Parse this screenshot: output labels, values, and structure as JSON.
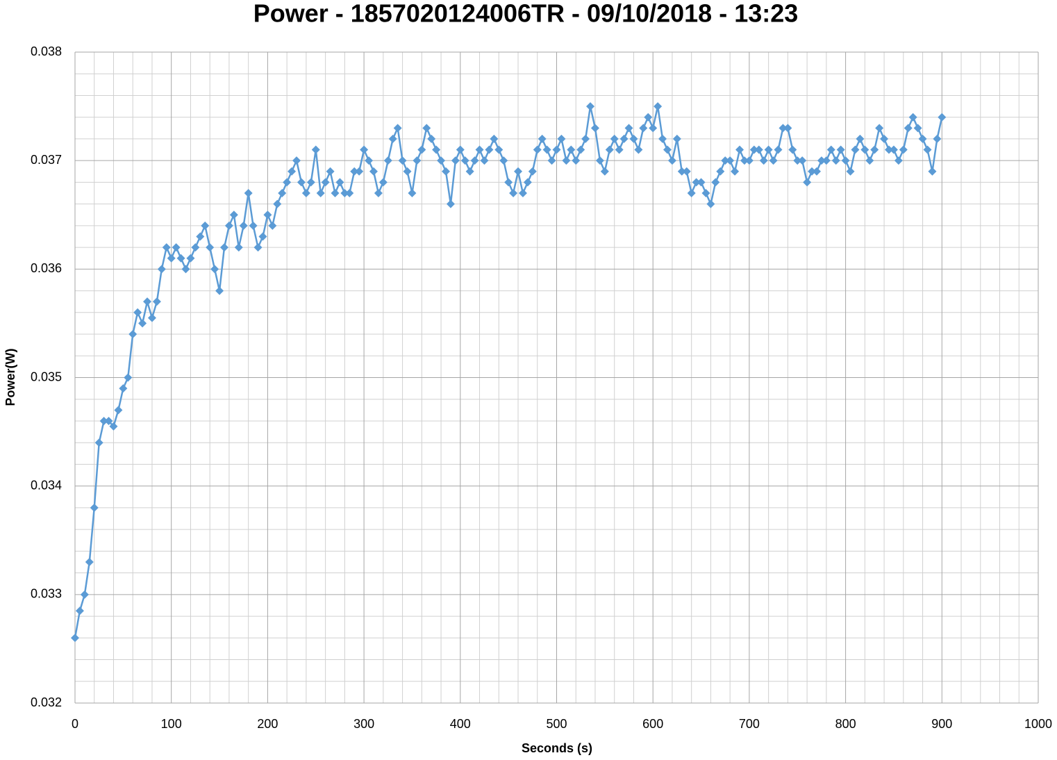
{
  "chart_data": {
    "type": "line",
    "title": "Power - 1857020124006TR - 09/10/2018 - 13:23",
    "x_label": "Seconds (s)",
    "y_label": "Power(W)",
    "x": [
      0,
      5,
      10,
      15,
      20,
      25,
      30,
      35,
      40,
      45,
      50,
      55,
      60,
      65,
      70,
      75,
      80,
      85,
      90,
      95,
      100,
      105,
      110,
      115,
      120,
      125,
      130,
      135,
      140,
      145,
      150,
      155,
      160,
      165,
      170,
      175,
      180,
      185,
      190,
      195,
      200,
      205,
      210,
      215,
      220,
      225,
      230,
      235,
      240,
      245,
      250,
      255,
      260,
      265,
      270,
      275,
      280,
      285,
      290,
      295,
      300,
      305,
      310,
      315,
      320,
      325,
      330,
      335,
      340,
      345,
      350,
      355,
      360,
      365,
      370,
      375,
      380,
      385,
      390,
      395,
      400,
      405,
      410,
      415,
      420,
      425,
      430,
      435,
      440,
      445,
      450,
      455,
      460,
      465,
      470,
      475,
      480,
      485,
      490,
      495,
      500,
      505,
      510,
      515,
      520,
      525,
      530,
      535,
      540,
      545,
      550,
      555,
      560,
      565,
      570,
      575,
      580,
      585,
      590,
      595,
      600,
      605,
      610,
      615,
      620,
      625,
      630,
      635,
      640,
      645,
      650,
      655,
      660,
      665,
      670,
      675,
      680,
      685,
      690,
      695,
      700,
      705,
      710,
      715,
      720,
      725,
      730,
      735,
      740,
      745,
      750,
      755,
      760,
      765,
      770,
      775,
      780,
      785,
      790,
      795,
      800,
      805,
      810,
      815,
      820,
      825,
      830,
      835,
      840,
      845,
      850,
      855,
      860,
      865,
      870,
      875,
      880,
      885,
      890,
      895,
      900
    ],
    "series": [
      {
        "name": "Power",
        "color": "#5b9bd5",
        "values": [
          0.0326,
          0.03285,
          0.033,
          0.0333,
          0.0338,
          0.0344,
          0.0346,
          0.0346,
          0.03455,
          0.0347,
          0.0349,
          0.035,
          0.0354,
          0.0356,
          0.0355,
          0.0357,
          0.03555,
          0.0357,
          0.036,
          0.0362,
          0.0361,
          0.0362,
          0.0361,
          0.036,
          0.0361,
          0.0362,
          0.0363,
          0.0364,
          0.0362,
          0.036,
          0.0358,
          0.0362,
          0.0364,
          0.0365,
          0.0362,
          0.0364,
          0.0367,
          0.0364,
          0.0362,
          0.0363,
          0.0365,
          0.0364,
          0.0366,
          0.0367,
          0.0368,
          0.0369,
          0.037,
          0.0368,
          0.0367,
          0.0368,
          0.0371,
          0.0367,
          0.0368,
          0.0369,
          0.0367,
          0.0368,
          0.0367,
          0.0367,
          0.0369,
          0.0369,
          0.0371,
          0.037,
          0.0369,
          0.0367,
          0.0368,
          0.037,
          0.0372,
          0.0373,
          0.037,
          0.0369,
          0.0367,
          0.037,
          0.0371,
          0.0373,
          0.0372,
          0.0371,
          0.037,
          0.0369,
          0.0366,
          0.037,
          0.0371,
          0.037,
          0.0369,
          0.037,
          0.0371,
          0.037,
          0.0371,
          0.0372,
          0.0371,
          0.037,
          0.0368,
          0.0367,
          0.0369,
          0.0367,
          0.0368,
          0.0369,
          0.0371,
          0.0372,
          0.0371,
          0.037,
          0.0371,
          0.0372,
          0.037,
          0.0371,
          0.037,
          0.0371,
          0.0372,
          0.0375,
          0.0373,
          0.037,
          0.0369,
          0.0371,
          0.0372,
          0.0371,
          0.0372,
          0.0373,
          0.0372,
          0.0371,
          0.0373,
          0.0374,
          0.0373,
          0.0375,
          0.0372,
          0.0371,
          0.037,
          0.0372,
          0.0369,
          0.0369,
          0.0367,
          0.0368,
          0.0368,
          0.0367,
          0.0366,
          0.0368,
          0.0369,
          0.037,
          0.037,
          0.0369,
          0.0371,
          0.037,
          0.037,
          0.0371,
          0.0371,
          0.037,
          0.0371,
          0.037,
          0.0371,
          0.0373,
          0.0373,
          0.0371,
          0.037,
          0.037,
          0.0368,
          0.0369,
          0.0369,
          0.037,
          0.037,
          0.0371,
          0.037,
          0.0371,
          0.037,
          0.0369,
          0.0371,
          0.0372,
          0.0371,
          0.037,
          0.0371,
          0.0373,
          0.0372,
          0.0371,
          0.0371,
          0.037,
          0.0371,
          0.0373,
          0.0374,
          0.0373,
          0.0372,
          0.0371,
          0.0369,
          0.0372,
          0.0374
        ]
      }
    ],
    "xlim": [
      0,
      1000
    ],
    "xticks": [
      0,
      100,
      200,
      300,
      400,
      500,
      600,
      700,
      800,
      900,
      1000
    ],
    "ylim": [
      0.032,
      0.038
    ],
    "yticks": [
      0.032,
      0.033,
      0.034,
      0.035,
      0.036,
      0.037,
      0.038
    ],
    "grid": true
  }
}
